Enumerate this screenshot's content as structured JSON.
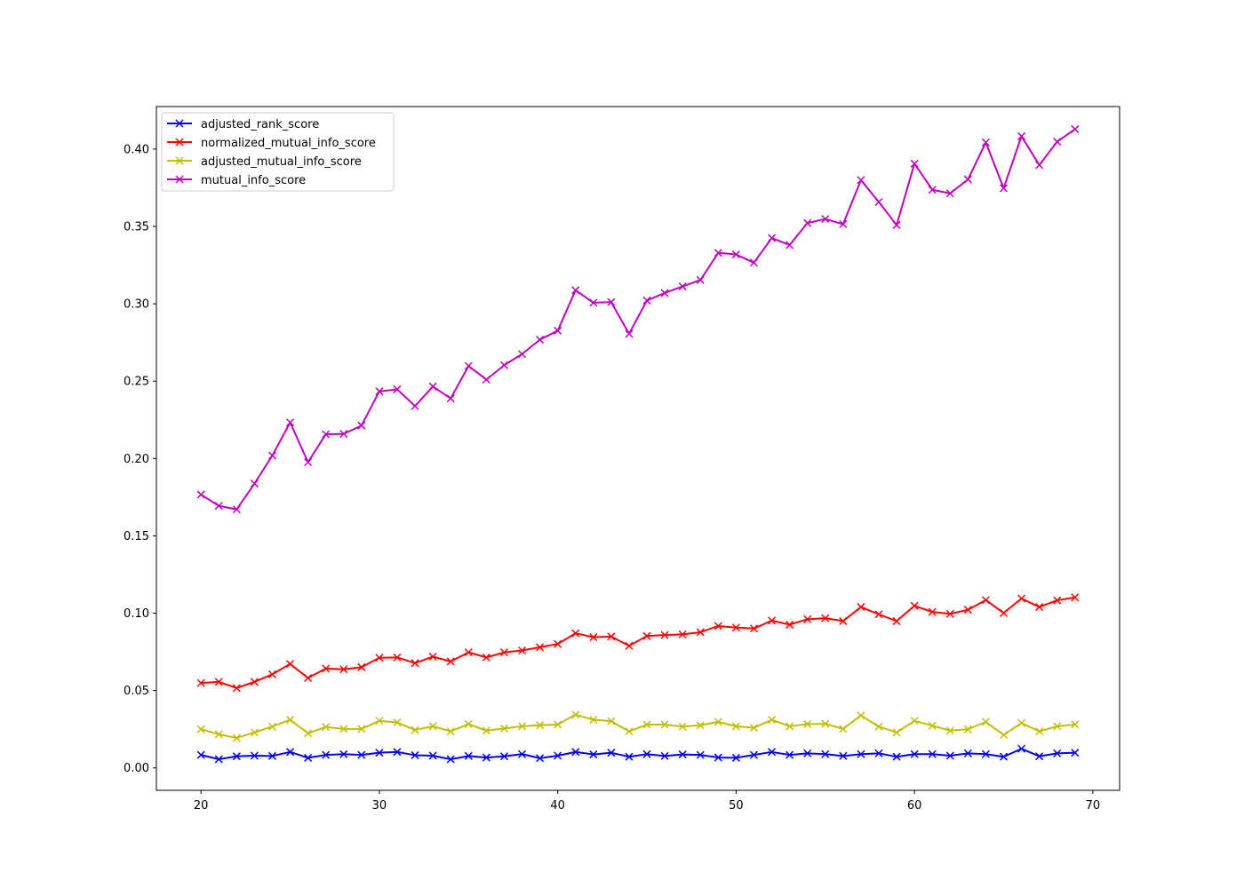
{
  "chart_data": {
    "type": "line",
    "title": "",
    "xlabel": "",
    "ylabel": "",
    "xlim": [
      17.5,
      71.5
    ],
    "ylim": [
      -0.0145,
      0.4275
    ],
    "x_ticks": [
      20,
      30,
      40,
      50,
      60,
      70
    ],
    "x_tick_labels": [
      "20",
      "30",
      "40",
      "50",
      "60",
      "70"
    ],
    "y_ticks": [
      0.0,
      0.05,
      0.1,
      0.15,
      0.2,
      0.25,
      0.3,
      0.35,
      0.4
    ],
    "y_tick_labels": [
      "0.00",
      "0.05",
      "0.10",
      "0.15",
      "0.20",
      "0.25",
      "0.30",
      "0.35",
      "0.40"
    ],
    "grid": false,
    "legend_position": "top-left",
    "marker": "x",
    "x": [
      20,
      21,
      22,
      23,
      24,
      25,
      26,
      27,
      28,
      29,
      30,
      31,
      32,
      33,
      34,
      35,
      36,
      37,
      38,
      39,
      40,
      41,
      42,
      43,
      44,
      45,
      46,
      47,
      48,
      49,
      50,
      51,
      52,
      53,
      54,
      55,
      56,
      57,
      58,
      59,
      60,
      61,
      62,
      63,
      64,
      65,
      66,
      67,
      68,
      69
    ],
    "series": [
      {
        "name": "adjusted_rank_score",
        "color": "#0000ff",
        "values": [
          0.0084,
          0.0056,
          0.0075,
          0.0079,
          0.0077,
          0.0103,
          0.0065,
          0.0084,
          0.0089,
          0.0084,
          0.0098,
          0.0103,
          0.0082,
          0.0079,
          0.0056,
          0.0077,
          0.0067,
          0.0075,
          0.0089,
          0.0063,
          0.0079,
          0.0103,
          0.0087,
          0.0098,
          0.0072,
          0.0089,
          0.0077,
          0.0087,
          0.0084,
          0.0067,
          0.0065,
          0.0084,
          0.0103,
          0.0084,
          0.0094,
          0.0089,
          0.0077,
          0.0089,
          0.0094,
          0.0072,
          0.0089,
          0.0089,
          0.0079,
          0.0094,
          0.0089,
          0.0072,
          0.0124,
          0.0075,
          0.0094,
          0.0098
        ]
      },
      {
        "name": "normalized_mutual_info_score",
        "color": "#ff0000",
        "values": [
          0.0549,
          0.0556,
          0.0516,
          0.0556,
          0.0605,
          0.0672,
          0.0581,
          0.0642,
          0.0637,
          0.0651,
          0.0712,
          0.0714,
          0.0677,
          0.0719,
          0.0688,
          0.0747,
          0.0714,
          0.0747,
          0.0759,
          0.078,
          0.0801,
          0.087,
          0.0845,
          0.0849,
          0.0789,
          0.0852,
          0.0859,
          0.0863,
          0.0877,
          0.0917,
          0.0907,
          0.0901,
          0.0952,
          0.0926,
          0.0961,
          0.0968,
          0.0949,
          0.104,
          0.0993,
          0.0949,
          0.1048,
          0.1008,
          0.0996,
          0.1022,
          0.1085,
          0.1001,
          0.1095,
          0.104,
          0.1083,
          0.1102
        ]
      },
      {
        "name": "adjusted_mutual_info_score",
        "color": "#bfbf00",
        "values": [
          0.025,
          0.0217,
          0.0194,
          0.0229,
          0.0267,
          0.0311,
          0.0224,
          0.0264,
          0.0252,
          0.0252,
          0.0304,
          0.0294,
          0.0245,
          0.0269,
          0.0236,
          0.0283,
          0.0241,
          0.0255,
          0.0269,
          0.0276,
          0.028,
          0.0344,
          0.0311,
          0.0302,
          0.0236,
          0.028,
          0.028,
          0.0267,
          0.0276,
          0.0297,
          0.0269,
          0.0259,
          0.0311,
          0.0269,
          0.0283,
          0.0285,
          0.0252,
          0.0339,
          0.0267,
          0.0229,
          0.0304,
          0.0273,
          0.0241,
          0.025,
          0.0297,
          0.0213,
          0.029,
          0.0236,
          0.0269,
          0.028
        ]
      },
      {
        "name": "mutual_info_score",
        "color": "#bf00bf",
        "values": [
          0.1767,
          0.1694,
          0.1671,
          0.1838,
          0.2019,
          0.2233,
          0.1976,
          0.2157,
          0.2159,
          0.2213,
          0.2434,
          0.2447,
          0.2339,
          0.2465,
          0.2388,
          0.2598,
          0.251,
          0.2603,
          0.2675,
          0.2768,
          0.2826,
          0.3088,
          0.3007,
          0.3011,
          0.2806,
          0.3021,
          0.307,
          0.3112,
          0.3154,
          0.3329,
          0.3319,
          0.3266,
          0.3425,
          0.338,
          0.3522,
          0.3548,
          0.3515,
          0.38,
          0.3658,
          0.3509,
          0.3906,
          0.3737,
          0.3714,
          0.3804,
          0.4043,
          0.3747,
          0.4083,
          0.3897,
          0.4048,
          0.4129
        ]
      }
    ]
  }
}
